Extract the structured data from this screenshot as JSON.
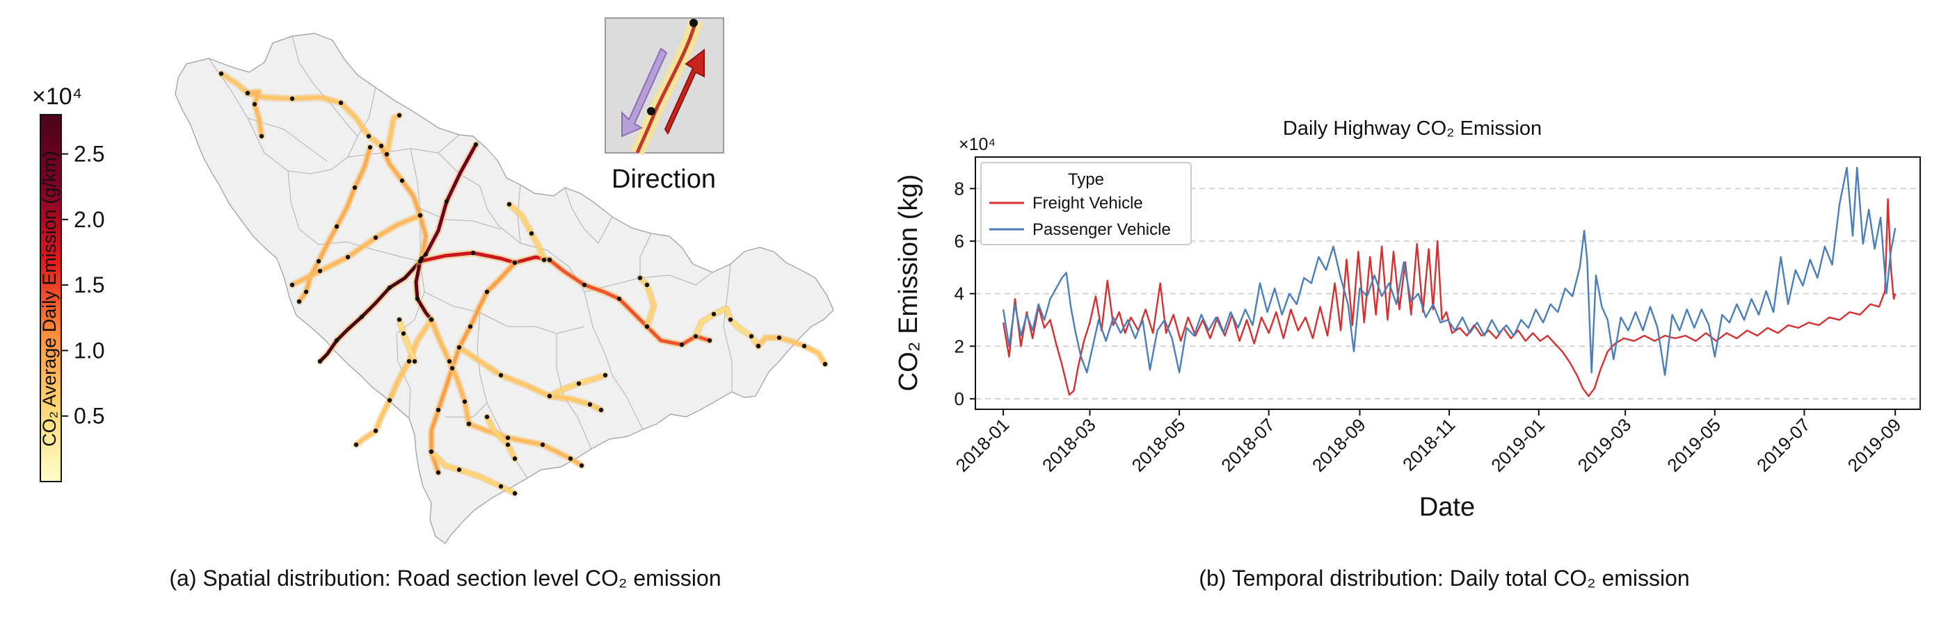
{
  "left_panel": {
    "caption": "(a) Spatial distribution: Road section level CO₂ emission",
    "colorbar": {
      "multiplier": "×10⁴",
      "label": "CO₂ Average Daily Emission (g/km)",
      "ticks": [
        "0.5",
        "1.0",
        "1.5",
        "2.0",
        "2.5"
      ],
      "tick_values": [
        0.5,
        1.0,
        1.5,
        2.0,
        2.5
      ],
      "range": [
        0.0,
        2.8
      ],
      "colormap": [
        "#ffffcc",
        "#fed976",
        "#fd8d3c",
        "#e31a1c",
        "#800026",
        "#4a0417"
      ]
    },
    "inset": {
      "label": "Direction"
    },
    "colors": {
      "region_fill": "#f0f0f0",
      "region_border": "#9a9a9a",
      "node": "#111111"
    }
  },
  "chart_data": {
    "type": "line",
    "title": "Daily Highway CO₂ Emission",
    "caption": "(b) Temporal distribution: Daily total CO₂ emission",
    "xlabel": "Date",
    "ylabel": "CO₂ Emission (kg)",
    "y_multiplier": "×10⁴",
    "ylim": [
      -0.4,
      9.2
    ],
    "yticks": [
      0,
      2,
      4,
      6,
      8
    ],
    "xlim": [
      "2017-12-13",
      "2019-09-18"
    ],
    "xticks": [
      "2018-01",
      "2018-03",
      "2018-05",
      "2018-07",
      "2018-09",
      "2018-11",
      "2019-01",
      "2019-03",
      "2019-05",
      "2019-07",
      "2019-09"
    ],
    "xtick_dates": [
      "2018-01-01",
      "2018-03-01",
      "2018-05-01",
      "2018-07-01",
      "2018-09-01",
      "2018-11-01",
      "2019-01-01",
      "2019-03-01",
      "2019-05-01",
      "2019-07-01",
      "2019-09-01"
    ],
    "grid": "horizontal dashed",
    "legend": {
      "title": "Type",
      "position": "top-left"
    },
    "series": [
      {
        "name": "Freight Vehicle",
        "color": "#d62f2f",
        "points": [
          [
            "2018-01-01",
            2.9
          ],
          [
            "2018-01-05",
            1.6
          ],
          [
            "2018-01-09",
            3.8
          ],
          [
            "2018-01-13",
            2.0
          ],
          [
            "2018-01-17",
            3.3
          ],
          [
            "2018-01-21",
            2.3
          ],
          [
            "2018-01-25",
            3.5
          ],
          [
            "2018-01-29",
            2.7
          ],
          [
            "2018-02-02",
            3.0
          ],
          [
            "2018-02-06",
            2.1
          ],
          [
            "2018-02-10",
            1.3
          ],
          [
            "2018-02-13",
            0.6
          ],
          [
            "2018-02-15",
            0.15
          ],
          [
            "2018-02-18",
            0.3
          ],
          [
            "2018-02-21",
            1.2
          ],
          [
            "2018-02-25",
            2.2
          ],
          [
            "2018-03-01",
            2.9
          ],
          [
            "2018-03-05",
            3.9
          ],
          [
            "2018-03-09",
            2.6
          ],
          [
            "2018-03-13",
            4.5
          ],
          [
            "2018-03-17",
            2.8
          ],
          [
            "2018-03-21",
            3.3
          ],
          [
            "2018-03-25",
            2.5
          ],
          [
            "2018-03-29",
            3.1
          ],
          [
            "2018-04-03",
            2.6
          ],
          [
            "2018-04-08",
            3.4
          ],
          [
            "2018-04-13",
            2.5
          ],
          [
            "2018-04-18",
            4.4
          ],
          [
            "2018-04-22",
            2.5
          ],
          [
            "2018-04-27",
            3.2
          ],
          [
            "2018-05-02",
            2.2
          ],
          [
            "2018-05-07",
            3.1
          ],
          [
            "2018-05-12",
            2.4
          ],
          [
            "2018-05-17",
            3.0
          ],
          [
            "2018-05-22",
            2.3
          ],
          [
            "2018-05-27",
            3.1
          ],
          [
            "2018-06-01",
            2.4
          ],
          [
            "2018-06-06",
            3.2
          ],
          [
            "2018-06-11",
            2.2
          ],
          [
            "2018-06-16",
            3.0
          ],
          [
            "2018-06-21",
            2.1
          ],
          [
            "2018-06-26",
            3.1
          ],
          [
            "2018-07-01",
            2.5
          ],
          [
            "2018-07-06",
            3.3
          ],
          [
            "2018-07-11",
            2.3
          ],
          [
            "2018-07-16",
            3.4
          ],
          [
            "2018-07-21",
            2.6
          ],
          [
            "2018-07-26",
            3.1
          ],
          [
            "2018-07-31",
            2.3
          ],
          [
            "2018-08-05",
            3.5
          ],
          [
            "2018-08-10",
            2.4
          ],
          [
            "2018-08-15",
            4.4
          ],
          [
            "2018-08-19",
            2.6
          ],
          [
            "2018-08-23",
            5.3
          ],
          [
            "2018-08-27",
            2.8
          ],
          [
            "2018-08-31",
            5.6
          ],
          [
            "2018-09-04",
            2.9
          ],
          [
            "2018-09-08",
            5.4
          ],
          [
            "2018-09-12",
            3.2
          ],
          [
            "2018-09-16",
            5.8
          ],
          [
            "2018-09-20",
            3.0
          ],
          [
            "2018-09-24",
            5.6
          ],
          [
            "2018-09-28",
            3.4
          ],
          [
            "2018-10-02",
            5.2
          ],
          [
            "2018-10-06",
            3.2
          ],
          [
            "2018-10-10",
            5.9
          ],
          [
            "2018-10-14",
            3.3
          ],
          [
            "2018-10-18",
            5.7
          ],
          [
            "2018-10-21",
            3.4
          ],
          [
            "2018-10-24",
            6.0
          ],
          [
            "2018-10-27",
            3.0
          ],
          [
            "2018-10-30",
            3.3
          ],
          [
            "2018-11-03",
            2.5
          ],
          [
            "2018-11-08",
            2.7
          ],
          [
            "2018-11-13",
            2.4
          ],
          [
            "2018-11-18",
            2.8
          ],
          [
            "2018-11-23",
            2.4
          ],
          [
            "2018-11-28",
            2.6
          ],
          [
            "2018-12-03",
            2.3
          ],
          [
            "2018-12-08",
            2.7
          ],
          [
            "2018-12-13",
            2.3
          ],
          [
            "2018-12-18",
            2.6
          ],
          [
            "2018-12-23",
            2.2
          ],
          [
            "2018-12-28",
            2.5
          ],
          [
            "2019-01-02",
            2.2
          ],
          [
            "2019-01-07",
            2.4
          ],
          [
            "2019-01-12",
            2.1
          ],
          [
            "2019-01-17",
            1.8
          ],
          [
            "2019-01-22",
            1.4
          ],
          [
            "2019-01-27",
            0.9
          ],
          [
            "2019-01-31",
            0.4
          ],
          [
            "2019-02-04",
            0.1
          ],
          [
            "2019-02-08",
            0.4
          ],
          [
            "2019-02-12",
            1.1
          ],
          [
            "2019-02-17",
            1.8
          ],
          [
            "2019-02-22",
            2.1
          ],
          [
            "2019-02-28",
            2.3
          ],
          [
            "2019-03-07",
            2.2
          ],
          [
            "2019-03-14",
            2.4
          ],
          [
            "2019-03-21",
            2.2
          ],
          [
            "2019-03-28",
            2.4
          ],
          [
            "2019-04-04",
            2.3
          ],
          [
            "2019-04-11",
            2.4
          ],
          [
            "2019-04-18",
            2.2
          ],
          [
            "2019-04-25",
            2.5
          ],
          [
            "2019-05-02",
            2.2
          ],
          [
            "2019-05-09",
            2.5
          ],
          [
            "2019-05-16",
            2.3
          ],
          [
            "2019-05-23",
            2.6
          ],
          [
            "2019-05-30",
            2.4
          ],
          [
            "2019-06-06",
            2.7
          ],
          [
            "2019-06-13",
            2.5
          ],
          [
            "2019-06-20",
            2.8
          ],
          [
            "2019-06-27",
            2.7
          ],
          [
            "2019-07-04",
            2.9
          ],
          [
            "2019-07-11",
            2.8
          ],
          [
            "2019-07-18",
            3.1
          ],
          [
            "2019-07-25",
            3.0
          ],
          [
            "2019-08-01",
            3.3
          ],
          [
            "2019-08-08",
            3.2
          ],
          [
            "2019-08-15",
            3.6
          ],
          [
            "2019-08-21",
            3.5
          ],
          [
            "2019-08-25",
            4.1
          ],
          [
            "2019-08-27",
            7.6
          ],
          [
            "2019-08-29",
            5.0
          ],
          [
            "2019-08-31",
            3.8
          ],
          [
            "2019-09-01",
            4.0
          ]
        ]
      },
      {
        "name": "Passenger Vehicle",
        "color": "#4a7ebb",
        "points": [
          [
            "2018-01-01",
            3.4
          ],
          [
            "2018-01-05",
            2.0
          ],
          [
            "2018-01-09",
            3.6
          ],
          [
            "2018-01-13",
            2.4
          ],
          [
            "2018-01-17",
            3.2
          ],
          [
            "2018-01-21",
            2.6
          ],
          [
            "2018-01-25",
            3.6
          ],
          [
            "2018-01-29",
            3.0
          ],
          [
            "2018-02-02",
            3.8
          ],
          [
            "2018-02-06",
            4.2
          ],
          [
            "2018-02-10",
            4.6
          ],
          [
            "2018-02-13",
            4.8
          ],
          [
            "2018-02-16",
            3.5
          ],
          [
            "2018-02-19",
            2.6
          ],
          [
            "2018-02-23",
            1.6
          ],
          [
            "2018-02-27",
            1.0
          ],
          [
            "2018-03-03",
            2.0
          ],
          [
            "2018-03-07",
            3.0
          ],
          [
            "2018-03-12",
            2.2
          ],
          [
            "2018-03-17",
            3.1
          ],
          [
            "2018-03-22",
            2.5
          ],
          [
            "2018-03-27",
            3.0
          ],
          [
            "2018-04-01",
            2.3
          ],
          [
            "2018-04-06",
            3.0
          ],
          [
            "2018-04-11",
            1.1
          ],
          [
            "2018-04-16",
            2.6
          ],
          [
            "2018-04-21",
            3.0
          ],
          [
            "2018-04-26",
            2.3
          ],
          [
            "2018-05-01",
            1.0
          ],
          [
            "2018-05-06",
            2.7
          ],
          [
            "2018-05-11",
            2.4
          ],
          [
            "2018-05-16",
            3.2
          ],
          [
            "2018-05-21",
            2.6
          ],
          [
            "2018-05-26",
            3.1
          ],
          [
            "2018-05-31",
            2.5
          ],
          [
            "2018-06-05",
            3.3
          ],
          [
            "2018-06-10",
            2.7
          ],
          [
            "2018-06-15",
            3.4
          ],
          [
            "2018-06-20",
            2.8
          ],
          [
            "2018-06-25",
            4.4
          ],
          [
            "2018-06-30",
            3.3
          ],
          [
            "2018-07-05",
            4.2
          ],
          [
            "2018-07-10",
            3.2
          ],
          [
            "2018-07-15",
            4.0
          ],
          [
            "2018-07-20",
            3.6
          ],
          [
            "2018-07-25",
            4.6
          ],
          [
            "2018-07-30",
            4.4
          ],
          [
            "2018-08-04",
            5.4
          ],
          [
            "2018-08-09",
            4.9
          ],
          [
            "2018-08-14",
            5.8
          ],
          [
            "2018-08-19",
            4.6
          ],
          [
            "2018-08-24",
            3.6
          ],
          [
            "2018-08-28",
            1.8
          ],
          [
            "2018-09-01",
            4.2
          ],
          [
            "2018-09-06",
            3.9
          ],
          [
            "2018-09-11",
            4.7
          ],
          [
            "2018-09-16",
            3.9
          ],
          [
            "2018-09-21",
            4.4
          ],
          [
            "2018-09-26",
            3.6
          ],
          [
            "2018-10-01",
            5.2
          ],
          [
            "2018-10-06",
            3.7
          ],
          [
            "2018-10-11",
            4.0
          ],
          [
            "2018-10-16",
            3.1
          ],
          [
            "2018-10-21",
            3.6
          ],
          [
            "2018-10-26",
            2.9
          ],
          [
            "2018-10-31",
            3.0
          ],
          [
            "2018-11-05",
            2.6
          ],
          [
            "2018-11-10",
            3.1
          ],
          [
            "2018-11-15",
            2.5
          ],
          [
            "2018-11-20",
            2.9
          ],
          [
            "2018-11-25",
            2.4
          ],
          [
            "2018-11-30",
            3.0
          ],
          [
            "2018-12-05",
            2.5
          ],
          [
            "2018-12-10",
            2.8
          ],
          [
            "2018-12-15",
            2.4
          ],
          [
            "2018-12-20",
            3.0
          ],
          [
            "2018-12-25",
            2.7
          ],
          [
            "2018-12-30",
            3.4
          ],
          [
            "2019-01-04",
            2.9
          ],
          [
            "2019-01-09",
            3.6
          ],
          [
            "2019-01-14",
            3.3
          ],
          [
            "2019-01-19",
            4.2
          ],
          [
            "2019-01-24",
            3.9
          ],
          [
            "2019-01-29",
            5.0
          ],
          [
            "2019-02-01",
            6.4
          ],
          [
            "2019-02-03",
            5.3
          ],
          [
            "2019-02-06",
            1.0
          ],
          [
            "2019-02-09",
            4.7
          ],
          [
            "2019-02-13",
            3.5
          ],
          [
            "2019-02-17",
            3.0
          ],
          [
            "2019-02-21",
            1.5
          ],
          [
            "2019-02-26",
            3.1
          ],
          [
            "2019-03-03",
            2.6
          ],
          [
            "2019-03-08",
            3.3
          ],
          [
            "2019-03-13",
            2.6
          ],
          [
            "2019-03-18",
            3.5
          ],
          [
            "2019-03-23",
            2.7
          ],
          [
            "2019-03-28",
            0.9
          ],
          [
            "2019-04-02",
            3.2
          ],
          [
            "2019-04-07",
            2.6
          ],
          [
            "2019-04-12",
            3.4
          ],
          [
            "2019-04-17",
            2.7
          ],
          [
            "2019-04-22",
            3.4
          ],
          [
            "2019-04-27",
            2.8
          ],
          [
            "2019-05-01",
            1.6
          ],
          [
            "2019-05-06",
            3.2
          ],
          [
            "2019-05-11",
            2.9
          ],
          [
            "2019-05-16",
            3.6
          ],
          [
            "2019-05-21",
            3.0
          ],
          [
            "2019-05-26",
            3.8
          ],
          [
            "2019-05-31",
            3.2
          ],
          [
            "2019-06-05",
            4.1
          ],
          [
            "2019-06-10",
            3.3
          ],
          [
            "2019-06-15",
            5.4
          ],
          [
            "2019-06-20",
            3.6
          ],
          [
            "2019-06-25",
            4.9
          ],
          [
            "2019-06-30",
            4.3
          ],
          [
            "2019-07-05",
            5.3
          ],
          [
            "2019-07-10",
            4.6
          ],
          [
            "2019-07-15",
            5.8
          ],
          [
            "2019-07-20",
            5.1
          ],
          [
            "2019-07-25",
            7.4
          ],
          [
            "2019-07-30",
            8.8
          ],
          [
            "2019-08-03",
            6.2
          ],
          [
            "2019-08-06",
            8.8
          ],
          [
            "2019-08-10",
            5.9
          ],
          [
            "2019-08-14",
            7.2
          ],
          [
            "2019-08-18",
            5.7
          ],
          [
            "2019-08-22",
            6.9
          ],
          [
            "2019-08-26",
            4.0
          ],
          [
            "2019-08-29",
            5.6
          ],
          [
            "2019-09-01",
            6.5
          ]
        ]
      }
    ]
  }
}
